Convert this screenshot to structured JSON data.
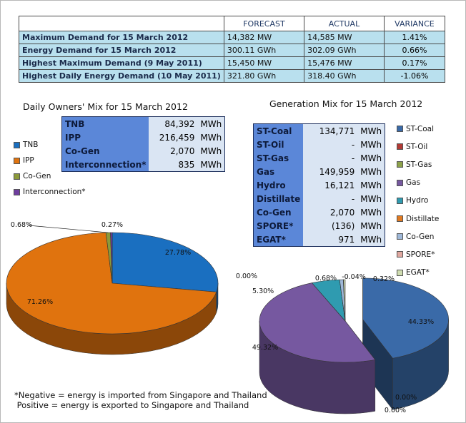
{
  "summary": {
    "headers": [
      "",
      "FORECAST",
      "ACTUAL",
      "VARIANCE"
    ],
    "rows": [
      {
        "label": "Maximum Demand for 15 March 2012",
        "forecast": "14,382  MW",
        "actual": "14,585  MW",
        "variance": "1.41%"
      },
      {
        "label": "Energy Demand for 15 March 2012",
        "forecast": "300.11  GWh",
        "actual": "302.09  GWh",
        "variance": "0.66%"
      },
      {
        "label": "Highest Maximum Demand (9 May 2011)",
        "forecast": "15,450  MW",
        "actual": "15,476  MW",
        "variance": "0.17%"
      },
      {
        "label": "Highest Daily Energy Demand (10 May 2011)",
        "forecast": "321.80  GWh",
        "actual": "318.40  GWh",
        "variance": "-1.06%"
      }
    ]
  },
  "owners_mix": {
    "title": "Daily Owners' Mix for 15 March 2012",
    "table": [
      {
        "name": "TNB",
        "value": "84,392",
        "unit": "MWh"
      },
      {
        "name": "IPP",
        "value": "216,459",
        "unit": "MWh"
      },
      {
        "name": "Co-Gen",
        "value": "2,070",
        "unit": "MWh"
      },
      {
        "name": "Interconnection*",
        "value": "835",
        "unit": "MWh"
      }
    ]
  },
  "generation_mix": {
    "title": "Generation Mix for 15 March 2012",
    "table": [
      {
        "name": "ST-Coal",
        "value": "134,771",
        "unit": "MWh"
      },
      {
        "name": "ST-Oil",
        "value": "-",
        "unit": "MWh"
      },
      {
        "name": "ST-Gas",
        "value": "-",
        "unit": "MWh"
      },
      {
        "name": "Gas",
        "value": "149,959",
        "unit": "MWh"
      },
      {
        "name": "Hydro",
        "value": "16,121",
        "unit": "MWh"
      },
      {
        "name": "Distillate",
        "value": "-",
        "unit": "MWh"
      },
      {
        "name": "Co-Gen",
        "value": "2,070",
        "unit": "MWh"
      },
      {
        "name": "SPORE*",
        "value": "(136)",
        "unit": "MWh"
      },
      {
        "name": "EGAT*",
        "value": "971",
        "unit": "MWh"
      }
    ]
  },
  "chart_data": [
    {
      "type": "pie",
      "title": "Daily Owners' Mix for 15 March 2012",
      "categories": [
        "TNB",
        "IPP",
        "Co-Gen",
        "Interconnection*"
      ],
      "values": [
        27.78,
        71.26,
        0.68,
        0.27
      ],
      "labels": [
        "27.78%",
        "71.26%",
        "0.68%",
        "0.27%"
      ],
      "colors": [
        "#1a6fc0",
        "#e0730e",
        "#8c9a3a",
        "#6e3d9e"
      ],
      "legend": "left"
    },
    {
      "type": "pie",
      "title": "Generation Mix for 15 March 2012",
      "categories": [
        "ST-Coal",
        "ST-Oil",
        "ST-Gas",
        "Gas",
        "Hydro",
        "Distillate",
        "Co-Gen",
        "SPORE*",
        "EGAT*"
      ],
      "values": [
        44.33,
        0.0,
        0.0,
        49.32,
        5.3,
        0.0,
        0.68,
        -0.04,
        0.32
      ],
      "labels": [
        "44.33%",
        "0.00%",
        "0.00%",
        "49.32%",
        "5.30%",
        "0.00%",
        "0.68%",
        "-0.04%",
        "0.32%"
      ],
      "colors": [
        "#3a6aa8",
        "#b23a35",
        "#8da24a",
        "#7658a0",
        "#2f9bb0",
        "#e07a22",
        "#9fb8d8",
        "#e0a8a0",
        "#cfdcb0"
      ],
      "legend": "right"
    }
  ],
  "footnote": {
    "line1": "*Negative = energy is imported from Singapore and Thailand",
    "line2": " Positive = energy is exported to Singapore and Thailand"
  }
}
